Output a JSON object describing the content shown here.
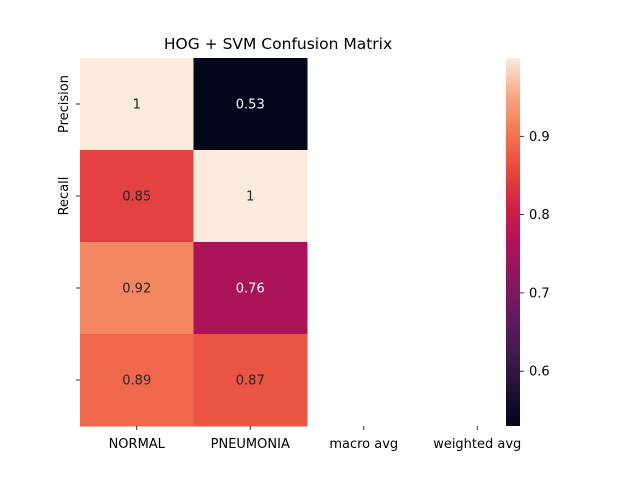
{
  "chart_data": {
    "type": "heatmap",
    "title": "HOG + SVM Confusion Matrix",
    "x_categories": [
      "NORMAL",
      "PNEUMONIA",
      "macro avg",
      "weighted avg"
    ],
    "y_tick_labels": [
      "Precision",
      "Recall",
      "",
      ""
    ],
    "values": [
      [
        1,
        0.53,
        null,
        null
      ],
      [
        0.85,
        1,
        null,
        null
      ],
      [
        0.92,
        0.76,
        null,
        null
      ],
      [
        0.89,
        0.87,
        null,
        null
      ]
    ],
    "value_labels": [
      [
        "1",
        "0.53",
        "",
        ""
      ],
      [
        "0.85",
        "1",
        "",
        ""
      ],
      [
        "0.92",
        "0.76",
        "",
        ""
      ],
      [
        "0.89",
        "0.87",
        "",
        ""
      ]
    ],
    "colorbar": {
      "min": 0.53,
      "max": 1.0,
      "ticks": [
        0.6,
        0.7,
        0.8,
        0.9
      ],
      "tick_labels": [
        "0.6",
        "0.7",
        "0.8",
        "0.9"
      ],
      "colormap": "rocket"
    }
  }
}
